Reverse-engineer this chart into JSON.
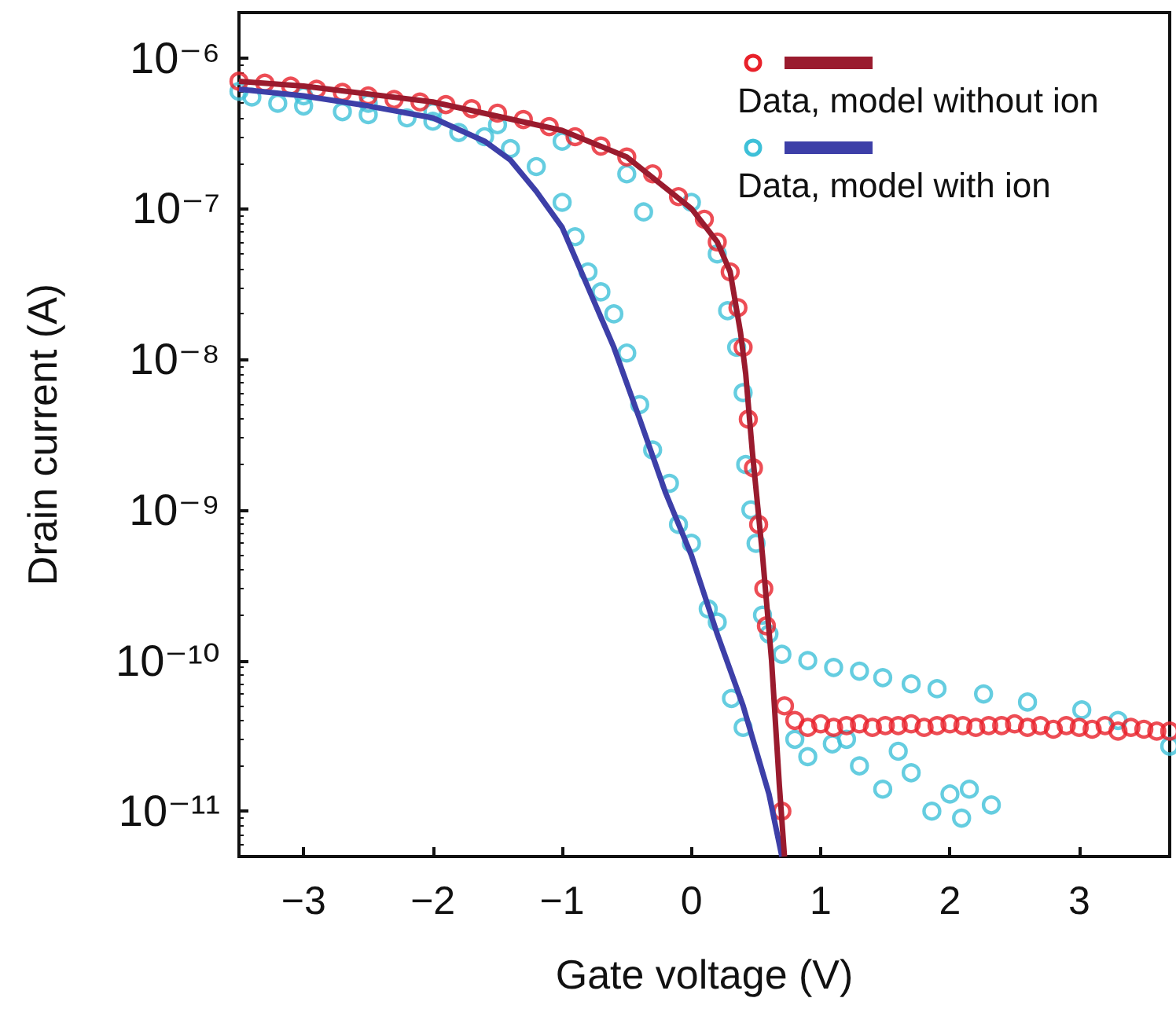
{
  "chart_data": {
    "type": "scatter",
    "xlabel": "Gate voltage (V)",
    "ylabel": "Drain current (A)",
    "xlim": [
      -3.5,
      3.7
    ],
    "xticks": [
      -3,
      -2,
      -1,
      0,
      1,
      2,
      3
    ],
    "ylim": [
      5e-12,
      2e-06
    ],
    "yticks": [
      {
        "value": 1e-11,
        "label": "10⁻¹¹"
      },
      {
        "value": 1e-10,
        "label": "10⁻¹⁰"
      },
      {
        "value": 1e-09,
        "label": "10⁻⁹"
      },
      {
        "value": 1e-08,
        "label": "10⁻⁸"
      },
      {
        "value": 1e-07,
        "label": "10⁻⁷"
      },
      {
        "value": 1e-06,
        "label": "10⁻⁶"
      }
    ],
    "log": "y",
    "grid": false,
    "legend": "top right",
    "series": [
      {
        "type": "scatter",
        "name": "Data, model with ion",
        "color": "#3ec0d8",
        "marker": "circle",
        "x": [
          -3.4,
          -3.2,
          -3.0,
          -2.7,
          -2.5,
          -2.2,
          -2.0,
          -1.8,
          -1.6,
          -1.4,
          -1.2,
          -1.0,
          -0.9,
          -0.8,
          -0.7,
          -0.6,
          -0.5,
          -0.4,
          -0.3,
          -0.17,
          -0.1,
          0.0,
          0.13,
          0.2,
          0.31,
          0.4,
          -3.5,
          -3.0,
          -2.5,
          -2.0,
          -1.5,
          -1.0,
          -0.5,
          -0.37,
          0.0,
          0.2,
          0.28,
          0.35,
          0.4,
          0.42,
          0.46,
          0.5,
          0.55,
          0.6,
          0.7,
          0.9,
          1.1,
          1.3,
          1.48,
          1.7,
          1.9,
          2.26,
          2.6,
          3.02,
          3.3,
          3.7,
          0.8,
          0.9,
          1.09,
          1.3,
          1.48,
          1.7,
          1.86,
          2.09,
          2.15,
          2.32,
          1.2,
          1.6,
          2.0
        ],
        "values": [
          5.5e-07,
          5e-07,
          4.8e-07,
          4.4e-07,
          4.2e-07,
          4e-07,
          3.8e-07,
          3.2e-07,
          3e-07,
          2.5e-07,
          1.9e-07,
          1.1e-07,
          6.5e-08,
          3.8e-08,
          2.8e-08,
          2e-08,
          1.1e-08,
          5e-09,
          2.5e-09,
          1.5e-09,
          8e-10,
          6e-10,
          2.2e-10,
          1.8e-10,
          5.6e-11,
          3.6e-11,
          6e-07,
          5.6e-07,
          5e-07,
          4.4e-07,
          3.6e-07,
          2.8e-07,
          1.7e-07,
          9.5e-08,
          1.1e-07,
          5e-08,
          2.1e-08,
          1.2e-08,
          6e-09,
          2e-09,
          1e-09,
          6e-10,
          2e-10,
          1.5e-10,
          1.1e-10,
          1e-10,
          9e-11,
          8.5e-11,
          7.7e-11,
          7e-11,
          6.5e-11,
          6e-11,
          5.3e-11,
          4.7e-11,
          4e-11,
          2.7e-11,
          3e-11,
          2.3e-11,
          2.8e-11,
          2e-11,
          1.4e-11,
          1.8e-11,
          1e-11,
          9e-12,
          1.4e-11,
          1.1e-11,
          3e-11,
          2.5e-11,
          1.3e-11
        ]
      },
      {
        "type": "line",
        "color": "#3d3fa8",
        "marker": "none",
        "x": [
          -3.5,
          -3.0,
          -2.5,
          -2.0,
          -1.6,
          -1.4,
          -1.2,
          -1.0,
          -0.8,
          -0.6,
          -0.4,
          -0.2,
          0.0,
          0.2,
          0.4,
          0.6,
          0.7
        ],
        "values": [
          6.2e-07,
          5.6e-07,
          4.8e-07,
          4e-07,
          2.8e-07,
          2.1e-07,
          1.3e-07,
          7.5e-08,
          3e-08,
          1.2e-08,
          4e-09,
          1.3e-09,
          5e-10,
          1.5e-10,
          5e-11,
          1.3e-11,
          5e-12
        ]
      },
      {
        "type": "scatter",
        "name": "Data, model without ion",
        "color": "#e8212a",
        "marker": "circle",
        "x": [
          -3.5,
          -3.3,
          -3.1,
          -2.9,
          -2.7,
          -2.5,
          -2.3,
          -2.1,
          -1.9,
          -1.7,
          -1.5,
          -1.3,
          -1.1,
          -0.9,
          -0.7,
          -0.5,
          -0.3,
          -0.1,
          0.1,
          0.2,
          0.3,
          0.36,
          0.4,
          0.44,
          0.48,
          0.52,
          0.56,
          0.58,
          0.7,
          0.72,
          0.8,
          0.9,
          1.0,
          1.1,
          1.2,
          1.3,
          1.4,
          1.5,
          1.6,
          1.7,
          1.8,
          1.9,
          2.0,
          2.1,
          2.2,
          2.3,
          2.4,
          2.5,
          2.6,
          2.7,
          2.8,
          2.9,
          3.0,
          3.1,
          3.2,
          3.3,
          3.4,
          3.5,
          3.6,
          3.7
        ],
        "values": [
          7e-07,
          6.8e-07,
          6.5e-07,
          6.2e-07,
          5.9e-07,
          5.6e-07,
          5.3e-07,
          5.1e-07,
          4.9e-07,
          4.6e-07,
          4.3e-07,
          3.9e-07,
          3.5e-07,
          3e-07,
          2.6e-07,
          2.2e-07,
          1.7e-07,
          1.2e-07,
          8.5e-08,
          6e-08,
          3.8e-08,
          2.2e-08,
          1.2e-08,
          4e-09,
          1.9e-09,
          8e-10,
          3e-10,
          1.7e-10,
          1e-11,
          5e-11,
          4e-11,
          3.6e-11,
          3.8e-11,
          3.6e-11,
          3.7e-11,
          3.8e-11,
          3.6e-11,
          3.7e-11,
          3.7e-11,
          3.8e-11,
          3.6e-11,
          3.7e-11,
          3.8e-11,
          3.7e-11,
          3.6e-11,
          3.7e-11,
          3.7e-11,
          3.8e-11,
          3.6e-11,
          3.7e-11,
          3.5e-11,
          3.7e-11,
          3.6e-11,
          3.5e-11,
          3.7e-11,
          3.4e-11,
          3.6e-11,
          3.5e-11,
          3.4e-11,
          3.4e-11
        ]
      },
      {
        "type": "line",
        "color": "#9a1b2e",
        "marker": "none",
        "x": [
          -3.5,
          -3.0,
          -2.0,
          -1.0,
          -0.5,
          0.0,
          0.2,
          0.3,
          0.38,
          0.42,
          0.47,
          0.55,
          0.62,
          0.68,
          0.72
        ],
        "values": [
          7e-07,
          6.5e-07,
          5.1e-07,
          3.3e-07,
          2.2e-07,
          1e-07,
          6e-08,
          3.8e-08,
          1.5e-08,
          8e-09,
          2.5e-09,
          5e-10,
          1e-10,
          1.5e-11,
          5e-12
        ]
      }
    ]
  }
}
